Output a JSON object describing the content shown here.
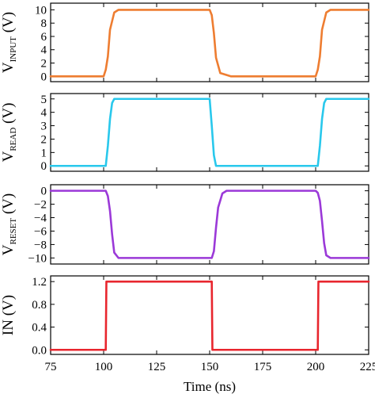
{
  "chart_data": [
    {
      "type": "line",
      "ylabel_main": "V",
      "ylabel_sub": "INPUT",
      "ylabel_unit": " (V)",
      "ylim": [
        -0.8,
        11
      ],
      "yticks": [
        0,
        2,
        4,
        6,
        8,
        10
      ],
      "ytick_labels": [
        "0",
        "2",
        "4",
        "6",
        "8",
        "10"
      ],
      "color": "#ee7d31",
      "series": [
        {
          "x": [
            75,
            100,
            101,
            102,
            103,
            105,
            107,
            150,
            151,
            152,
            153,
            155,
            160,
            200,
            201,
            202,
            203,
            205,
            207,
            225
          ],
          "y": [
            0,
            0,
            1,
            3,
            7,
            9.6,
            10,
            10,
            9.2,
            6.5,
            2.8,
            0.5,
            0,
            0,
            1,
            3,
            7,
            9.6,
            10,
            10
          ]
        }
      ]
    },
    {
      "type": "line",
      "ylabel_main": "V",
      "ylabel_sub": "READ",
      "ylabel_unit": " (V)",
      "ylim": [
        -0.4,
        5.4
      ],
      "yticks": [
        0,
        1,
        2,
        3,
        4,
        5
      ],
      "ytick_labels": [
        "0",
        "1",
        "2",
        "3",
        "4",
        "5"
      ],
      "color": "#29c8ec",
      "series": [
        {
          "x": [
            75,
            101,
            102,
            103,
            104,
            105,
            150,
            151,
            152,
            153,
            200,
            201,
            202,
            203,
            204,
            205,
            225
          ],
          "y": [
            0,
            0,
            1.5,
            3.5,
            4.7,
            5,
            5,
            3,
            0.8,
            0,
            0,
            0,
            1.5,
            3.5,
            4.7,
            5,
            5
          ]
        }
      ]
    },
    {
      "type": "line",
      "ylabel_main": "V",
      "ylabel_sub": "RESET",
      "ylabel_unit": " (V)",
      "ylim": [
        -10.9,
        0.9
      ],
      "yticks": [
        0,
        -2,
        -4,
        -6,
        -8,
        -10
      ],
      "ytick_labels": [
        "0",
        "−2",
        "−4",
        "−6",
        "−8",
        "−10"
      ],
      "color": "#9b39d8",
      "series": [
        {
          "x": [
            75,
            101,
            102,
            103,
            104,
            105,
            107,
            151,
            152,
            153,
            154,
            156,
            158,
            200,
            201,
            202,
            203,
            204,
            205,
            207,
            225
          ],
          "y": [
            0,
            0,
            -0.8,
            -3,
            -6.5,
            -9.2,
            -10,
            -10,
            -9,
            -5.5,
            -2.5,
            -0.4,
            0,
            0,
            -0.3,
            -1.5,
            -4.5,
            -7.8,
            -9.6,
            -10,
            -10
          ]
        }
      ]
    },
    {
      "type": "line",
      "ylabel_main": "IN",
      "ylabel_sub": "",
      "ylabel_unit": " (V)",
      "ylim": [
        -0.08,
        1.3
      ],
      "yticks": [
        0,
        0.4,
        0.8,
        1.2
      ],
      "ytick_labels": [
        "0.0",
        "0.4",
        "0.8",
        "1.2"
      ],
      "color": "#e8262e",
      "series": [
        {
          "x": [
            75,
            101,
            101.3,
            151,
            151.3,
            201,
            201.3,
            225
          ],
          "y": [
            0,
            0,
            1.2,
            1.2,
            0,
            0,
            1.2,
            1.2
          ]
        }
      ]
    }
  ],
  "x_axis": {
    "xlim": [
      75,
      225
    ],
    "ticks": [
      75,
      100,
      125,
      150,
      175,
      200,
      225
    ],
    "tick_labels": [
      "75",
      "100",
      "125",
      "150",
      "175",
      "200",
      "225"
    ],
    "label": "Time (ns)"
  }
}
